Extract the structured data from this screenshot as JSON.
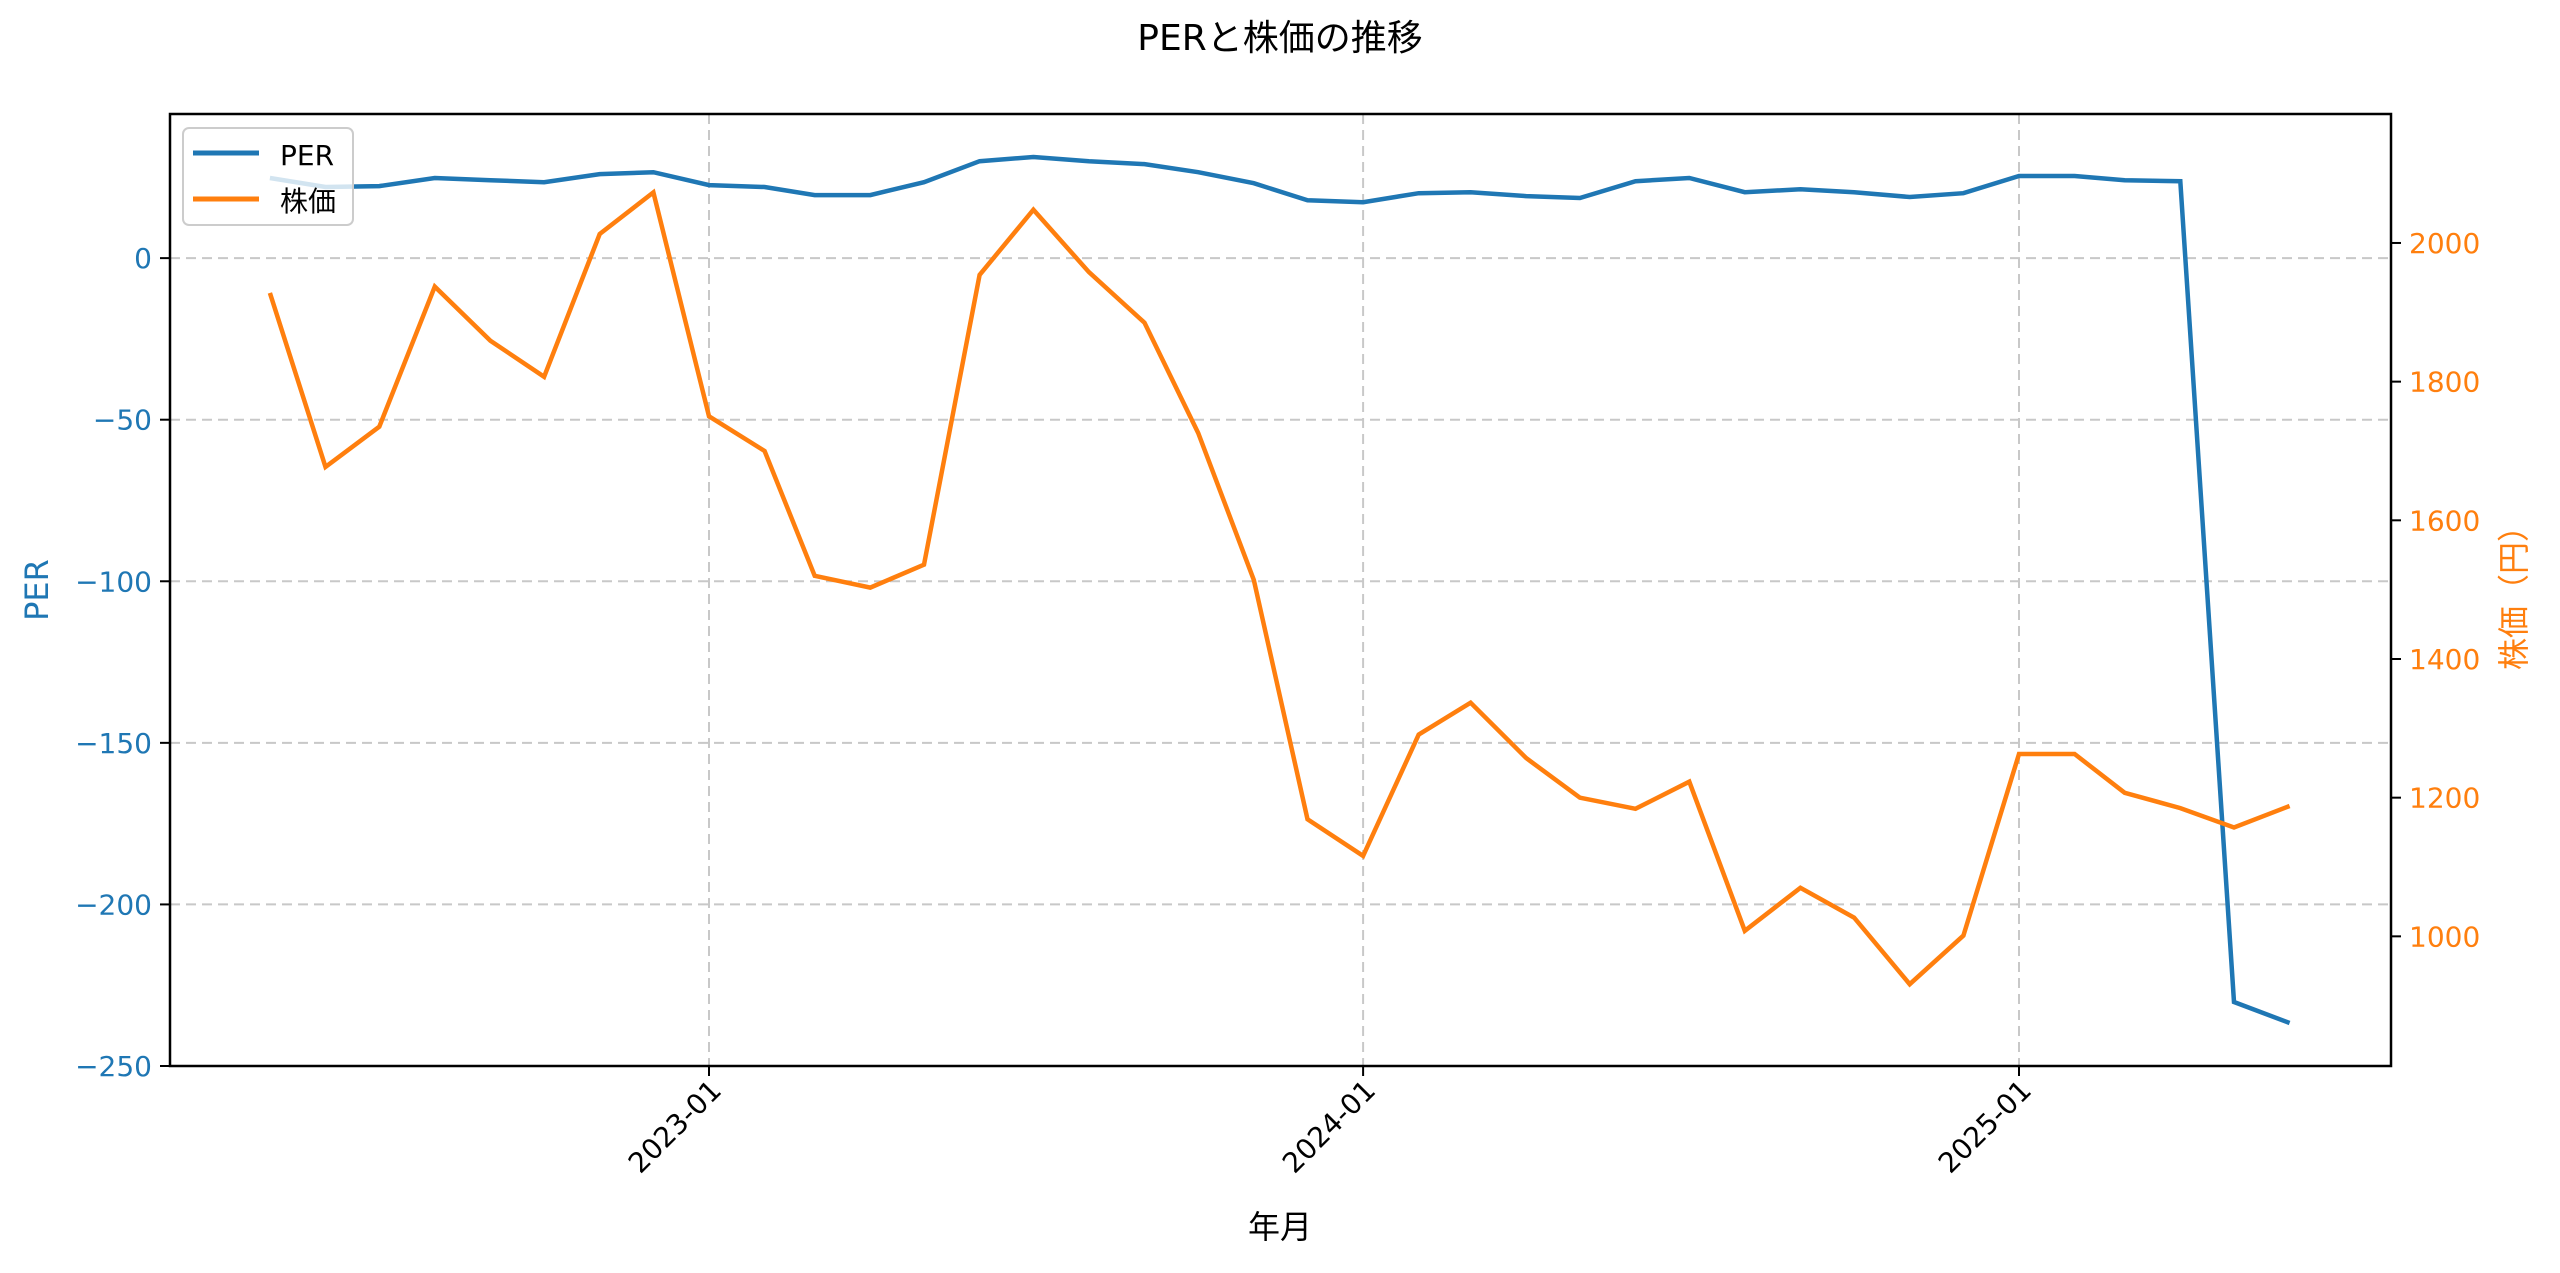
{
  "chart_data": {
    "type": "line",
    "title": "PERと株価の推移",
    "xlabel": "年月",
    "ylabel_left": "PER",
    "ylabel_right": "株価（円）",
    "x": [
      "2022-05",
      "2022-06",
      "2022-07",
      "2022-08",
      "2022-09",
      "2022-10",
      "2022-11",
      "2022-12",
      "2023-01",
      "2023-02",
      "2023-03",
      "2023-04",
      "2023-05",
      "2023-06",
      "2023-07",
      "2023-08",
      "2023-09",
      "2023-10",
      "2023-11",
      "2023-12",
      "2024-01",
      "2024-02",
      "2024-03",
      "2024-04",
      "2024-05",
      "2024-06",
      "2024-07",
      "2024-08",
      "2024-09",
      "2024-10",
      "2024-11",
      "2024-12",
      "2025-01",
      "2025-02",
      "2025-03",
      "2025-04",
      "2025-05",
      "2025-06"
    ],
    "x_ticks": [
      "2023-01",
      "2024-01",
      "2025-01"
    ],
    "series": [
      {
        "name": "PER",
        "axis": "left",
        "color": "#1f77b4",
        "values": [
          24.8,
          22.0,
          22.3,
          24.8,
          24.1,
          23.5,
          26.0,
          26.6,
          22.6,
          22.0,
          19.5,
          19.5,
          23.5,
          30.0,
          31.3,
          30.0,
          29.1,
          26.6,
          23.2,
          17.9,
          17.3,
          20.1,
          20.4,
          19.2,
          18.6,
          23.8,
          24.8,
          20.4,
          21.3,
          20.4,
          18.9,
          20.1,
          25.4,
          25.4,
          24.1,
          23.8,
          -230.2,
          -236.7
        ]
      },
      {
        "name": "株価",
        "axis": "right",
        "color": "#ff7f0e",
        "values": [
          1928,
          1677,
          1735,
          1937,
          1859,
          1807,
          2013,
          2073,
          1750,
          1700,
          1520,
          1503,
          1536,
          1954,
          2048,
          1958,
          1885,
          1726,
          1514,
          1169,
          1116,
          1291,
          1337,
          1257,
          1200,
          1184,
          1223,
          1008,
          1070,
          1027,
          931,
          1001,
          1263,
          1263,
          1207,
          1185,
          1157,
          1188
        ]
      }
    ],
    "ylim_left": [
      -250,
      44.6
    ],
    "ylim_right": [
      813,
      2186
    ],
    "yticks_left": [
      0,
      -50,
      -100,
      -150,
      -200,
      -250
    ],
    "yticks_left_labels": [
      "0",
      "−50",
      "−100",
      "−150",
      "−200",
      "−250"
    ],
    "yticks_right": [
      1000,
      1200,
      1400,
      1600,
      1800,
      2000
    ],
    "yticks_right_labels": [
      "1000",
      "1200",
      "1400",
      "1600",
      "1800",
      "2000"
    ],
    "grid": true,
    "grid_style": "dashed",
    "legend_position": "upper left",
    "legend": [
      "PER",
      "株価"
    ],
    "left_axis_color": "#1f77b4",
    "right_axis_color": "#ff7f0e"
  }
}
